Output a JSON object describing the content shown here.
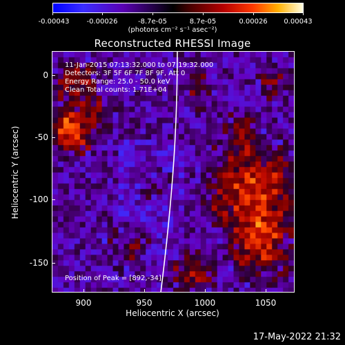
{
  "colorbar": {
    "tick_labels": [
      "-0.00043",
      "-0.00026",
      "-8.7e-05",
      "8.7e-05",
      "0.00026",
      "0.00043"
    ],
    "units": "(photons cm⁻² s⁻¹ asec⁻²)",
    "colors": [
      "#0000ff",
      "#5a00b4",
      "#000000",
      "#b50000",
      "#ff3a00",
      "#fffde0"
    ]
  },
  "title": "Reconstructed RHESSI Image",
  "info": {
    "time_range": "11-Jan-2015 07:13:32.000 to 07:19:32.000",
    "detectors": "Detectors: 3F 5F 6F 7F 8F 9F, Att 0",
    "energy": "Energy Range: 25.0 - 50.0 keV",
    "method": "Clean    Total counts: 1.71E+04",
    "peak": "Position of Peak = [892,-34]"
  },
  "x_axis": {
    "label": "Heliocentric X (arcsec)",
    "ticks": [
      "900",
      "950",
      "1000",
      "1050"
    ]
  },
  "y_axis": {
    "label": "Heliocentric Y (arcsec)",
    "ticks": [
      "0",
      "-50",
      "-100",
      "-150"
    ]
  },
  "timestamp": "17-May-2022 21:32"
}
